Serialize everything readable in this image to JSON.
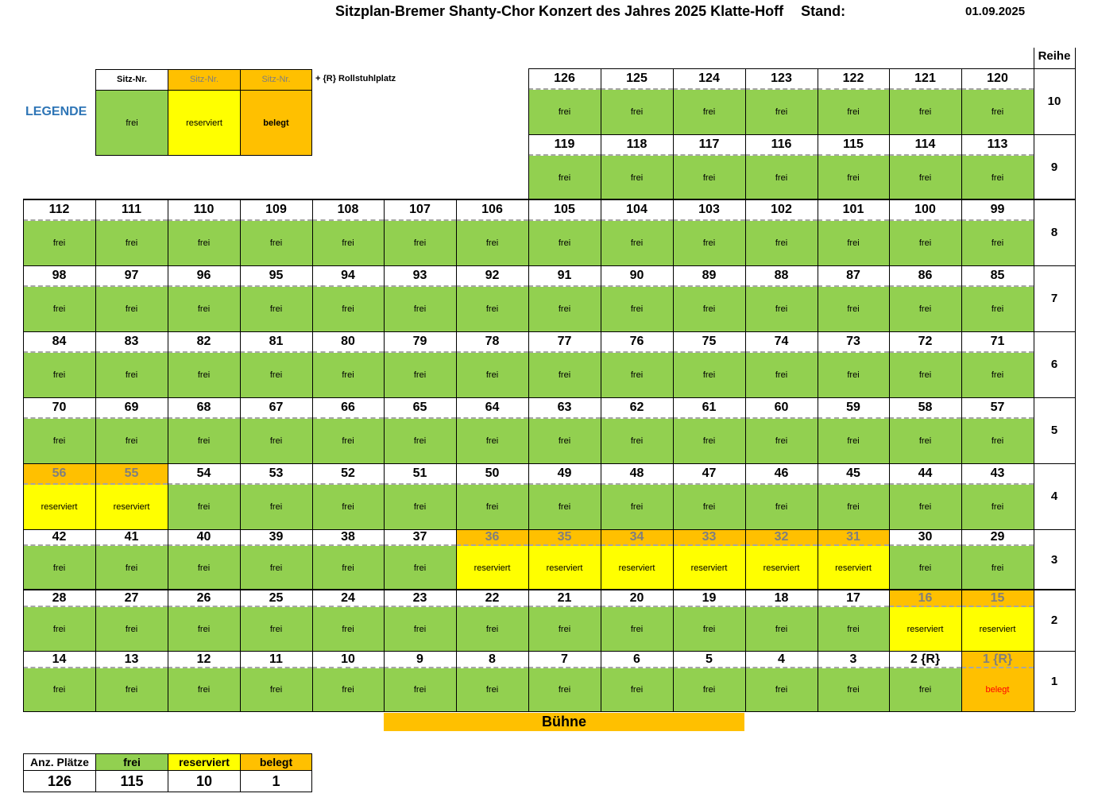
{
  "title": "Sitzplan-Bremer Shanty-Chor Konzert des Jahres  2025 Klatte-Hoff",
  "stand_label": "Stand:",
  "stand_date": "01.09.2025",
  "reihe_header": "Reihe",
  "legend": {
    "title": "LEGENDE",
    "header_label": "Sitz-Nr.",
    "items": [
      {
        "status": "frei",
        "label": "frei"
      },
      {
        "status": "reserviert",
        "label": "reserviert"
      },
      {
        "status": "belegt",
        "label": "belegt"
      }
    ],
    "note": "+ {R}   Rollstuhlplatz"
  },
  "rows": [
    {
      "reihe": "10",
      "seats": [
        [
          "126",
          "frei"
        ],
        [
          "125",
          "frei"
        ],
        [
          "124",
          "frei"
        ],
        [
          "123",
          "frei"
        ],
        [
          "122",
          "frei"
        ],
        [
          "121",
          "frei"
        ],
        [
          "120",
          "frei"
        ]
      ]
    },
    {
      "reihe": "9",
      "seats": [
        [
          "119",
          "frei"
        ],
        [
          "118",
          "frei"
        ],
        [
          "117",
          "frei"
        ],
        [
          "116",
          "frei"
        ],
        [
          "115",
          "frei"
        ],
        [
          "114",
          "frei"
        ],
        [
          "113",
          "frei"
        ]
      ]
    },
    {
      "reihe": "8",
      "seats": [
        [
          "112",
          "frei"
        ],
        [
          "111",
          "frei"
        ],
        [
          "110",
          "frei"
        ],
        [
          "109",
          "frei"
        ],
        [
          "108",
          "frei"
        ],
        [
          "107",
          "frei"
        ],
        [
          "106",
          "frei"
        ],
        [
          "105",
          "frei"
        ],
        [
          "104",
          "frei"
        ],
        [
          "103",
          "frei"
        ],
        [
          "102",
          "frei"
        ],
        [
          "101",
          "frei"
        ],
        [
          "100",
          "frei"
        ],
        [
          "99",
          "frei"
        ]
      ]
    },
    {
      "reihe": "7",
      "seats": [
        [
          "98",
          "frei"
        ],
        [
          "97",
          "frei"
        ],
        [
          "96",
          "frei"
        ],
        [
          "95",
          "frei"
        ],
        [
          "94",
          "frei"
        ],
        [
          "93",
          "frei"
        ],
        [
          "92",
          "frei"
        ],
        [
          "91",
          "frei"
        ],
        [
          "90",
          "frei"
        ],
        [
          "89",
          "frei"
        ],
        [
          "88",
          "frei"
        ],
        [
          "87",
          "frei"
        ],
        [
          "86",
          "frei"
        ],
        [
          "85",
          "frei"
        ]
      ]
    },
    {
      "reihe": "6",
      "seats": [
        [
          "84",
          "frei"
        ],
        [
          "83",
          "frei"
        ],
        [
          "82",
          "frei"
        ],
        [
          "81",
          "frei"
        ],
        [
          "80",
          "frei"
        ],
        [
          "79",
          "frei"
        ],
        [
          "78",
          "frei"
        ],
        [
          "77",
          "frei"
        ],
        [
          "76",
          "frei"
        ],
        [
          "75",
          "frei"
        ],
        [
          "74",
          "frei"
        ],
        [
          "73",
          "frei"
        ],
        [
          "72",
          "frei"
        ],
        [
          "71",
          "frei"
        ]
      ]
    },
    {
      "reihe": "5",
      "seats": [
        [
          "70",
          "frei"
        ],
        [
          "69",
          "frei"
        ],
        [
          "68",
          "frei"
        ],
        [
          "67",
          "frei"
        ],
        [
          "66",
          "frei"
        ],
        [
          "65",
          "frei"
        ],
        [
          "64",
          "frei"
        ],
        [
          "63",
          "frei"
        ],
        [
          "62",
          "frei"
        ],
        [
          "61",
          "frei"
        ],
        [
          "60",
          "frei"
        ],
        [
          "59",
          "frei"
        ],
        [
          "58",
          "frei"
        ],
        [
          "57",
          "frei"
        ]
      ]
    },
    {
      "reihe": "4",
      "seats": [
        [
          "56",
          "reserviert"
        ],
        [
          "55",
          "reserviert"
        ],
        [
          "54",
          "frei"
        ],
        [
          "53",
          "frei"
        ],
        [
          "52",
          "frei"
        ],
        [
          "51",
          "frei"
        ],
        [
          "50",
          "frei"
        ],
        [
          "49",
          "frei"
        ],
        [
          "48",
          "frei"
        ],
        [
          "47",
          "frei"
        ],
        [
          "46",
          "frei"
        ],
        [
          "45",
          "frei"
        ],
        [
          "44",
          "frei"
        ],
        [
          "43",
          "frei"
        ]
      ]
    },
    {
      "reihe": "3",
      "seats": [
        [
          "42",
          "frei"
        ],
        [
          "41",
          "frei"
        ],
        [
          "40",
          "frei"
        ],
        [
          "39",
          "frei"
        ],
        [
          "38",
          "frei"
        ],
        [
          "37",
          "frei"
        ],
        [
          "36",
          "reserviert"
        ],
        [
          "35",
          "reserviert"
        ],
        [
          "34",
          "reserviert"
        ],
        [
          "33",
          "reserviert"
        ],
        [
          "32",
          "reserviert"
        ],
        [
          "31",
          "reserviert"
        ],
        [
          "30",
          "frei"
        ],
        [
          "29",
          "frei"
        ]
      ]
    },
    {
      "reihe": "2",
      "seats": [
        [
          "28",
          "frei"
        ],
        [
          "27",
          "frei"
        ],
        [
          "26",
          "frei"
        ],
        [
          "25",
          "frei"
        ],
        [
          "24",
          "frei"
        ],
        [
          "23",
          "frei"
        ],
        [
          "22",
          "frei"
        ],
        [
          "21",
          "frei"
        ],
        [
          "20",
          "frei"
        ],
        [
          "19",
          "frei"
        ],
        [
          "18",
          "frei"
        ],
        [
          "17",
          "frei"
        ],
        [
          "16",
          "reserviert"
        ],
        [
          "15",
          "reserviert"
        ]
      ]
    },
    {
      "reihe": "1",
      "seats": [
        [
          "14",
          "frei"
        ],
        [
          "13",
          "frei"
        ],
        [
          "12",
          "frei"
        ],
        [
          "11",
          "frei"
        ],
        [
          "10",
          "frei"
        ],
        [
          "9",
          "frei"
        ],
        [
          "8",
          "frei"
        ],
        [
          "7",
          "frei"
        ],
        [
          "6",
          "frei"
        ],
        [
          "5",
          "frei"
        ],
        [
          "4",
          "frei"
        ],
        [
          "3",
          "frei"
        ],
        [
          "2 {R}",
          "frei"
        ],
        [
          "1 {R}",
          "belegt"
        ]
      ]
    }
  ],
  "stage": "Bühne",
  "summary": {
    "headers": [
      "Anz. Plätze",
      "frei",
      "reserviert",
      "belegt"
    ],
    "values": [
      "126",
      "115",
      "10",
      "1"
    ]
  },
  "colors": {
    "frei": "#92d050",
    "reserviert": "#ffff00",
    "belegt": "#ffc000",
    "legend_title": "#2e75b6"
  }
}
